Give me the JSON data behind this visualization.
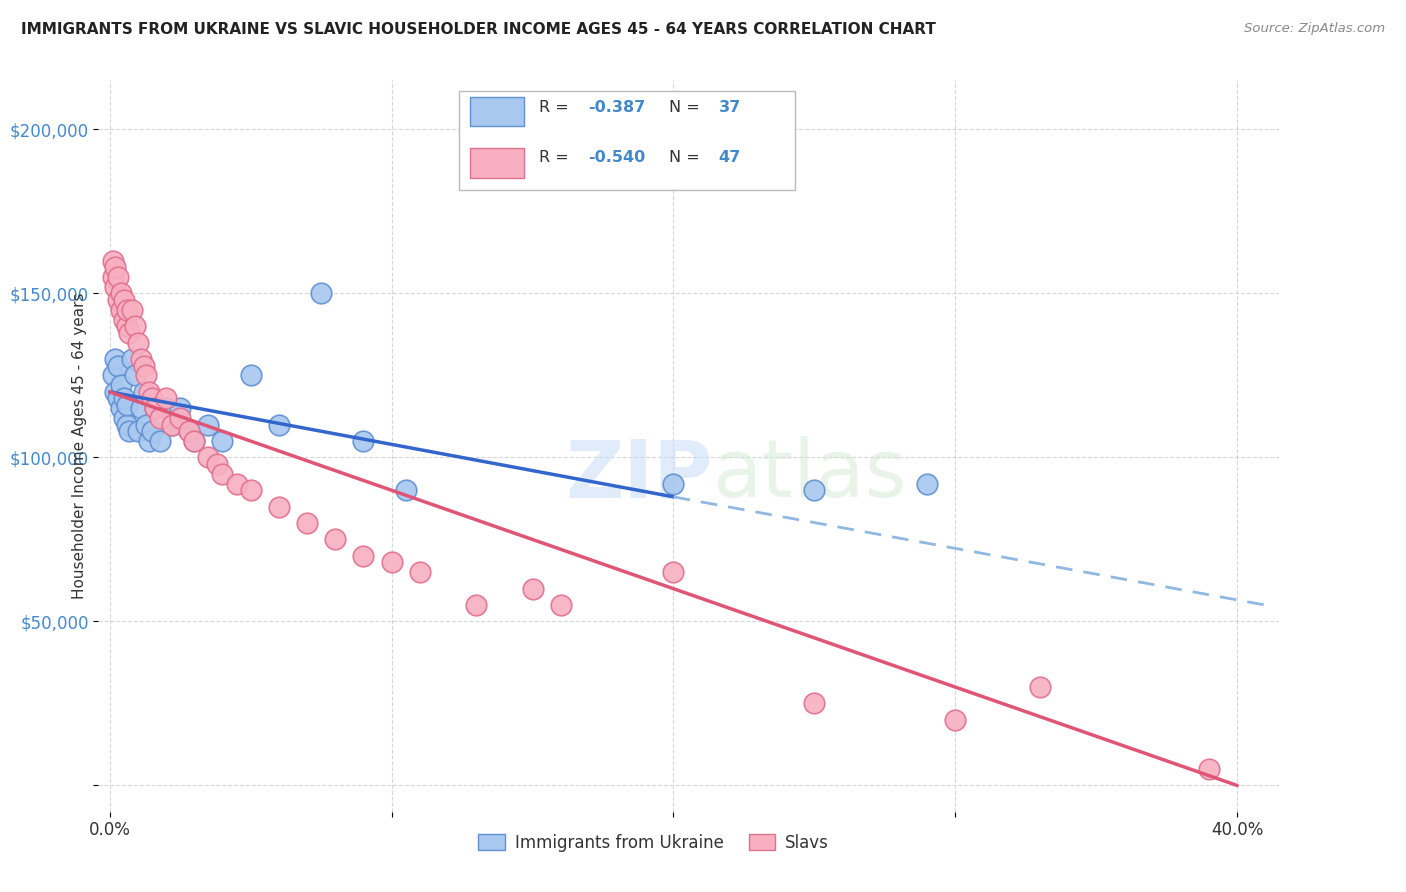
{
  "title": "IMMIGRANTS FROM UKRAINE VS SLAVIC HOUSEHOLDER INCOME AGES 45 - 64 YEARS CORRELATION CHART",
  "source": "Source: ZipAtlas.com",
  "ylabel": "Householder Income Ages 45 - 64 years",
  "xlim": [
    -0.004,
    0.415
  ],
  "ylim": [
    -8000,
    215000
  ],
  "ukraine_color": "#a8c8f0",
  "slavs_color": "#f8b0c0",
  "ukraine_edge": "#6090d0",
  "slavs_edge": "#e07090",
  "reg_ukraine_solid": "#3366cc",
  "reg_ukraine_dash": "#90b8e0",
  "reg_slavs": "#e05575",
  "watermark_zip": "ZIP",
  "watermark_atlas": "atlas",
  "legend_R_ukraine": "-0.387",
  "legend_N_ukraine": "37",
  "legend_R_slavs": "-0.540",
  "legend_N_slavs": "47",
  "text_color": "#333333",
  "label_color": "#4488cc",
  "ukraine_x": [
    0.001,
    0.002,
    0.002,
    0.003,
    0.003,
    0.004,
    0.004,
    0.005,
    0.005,
    0.006,
    0.006,
    0.007,
    0.008,
    0.009,
    0.01,
    0.011,
    0.012,
    0.013,
    0.014,
    0.015,
    0.016,
    0.018,
    0.02,
    0.022,
    0.025,
    0.028,
    0.03,
    0.035,
    0.04,
    0.05,
    0.06,
    0.075,
    0.09,
    0.105,
    0.2,
    0.25,
    0.29
  ],
  "ukraine_y": [
    125000,
    120000,
    130000,
    118000,
    128000,
    115000,
    122000,
    112000,
    118000,
    110000,
    116000,
    108000,
    130000,
    125000,
    108000,
    115000,
    120000,
    110000,
    105000,
    108000,
    115000,
    105000,
    115000,
    110000,
    115000,
    108000,
    105000,
    110000,
    105000,
    125000,
    110000,
    150000,
    105000,
    90000,
    92000,
    90000,
    92000
  ],
  "slavs_x": [
    0.001,
    0.001,
    0.002,
    0.002,
    0.003,
    0.003,
    0.004,
    0.004,
    0.005,
    0.005,
    0.006,
    0.006,
    0.007,
    0.008,
    0.009,
    0.01,
    0.011,
    0.012,
    0.013,
    0.014,
    0.015,
    0.016,
    0.018,
    0.02,
    0.022,
    0.025,
    0.028,
    0.03,
    0.035,
    0.038,
    0.04,
    0.045,
    0.05,
    0.06,
    0.07,
    0.08,
    0.09,
    0.1,
    0.11,
    0.13,
    0.15,
    0.16,
    0.2,
    0.25,
    0.3,
    0.33,
    0.39
  ],
  "slavs_y": [
    160000,
    155000,
    158000,
    152000,
    148000,
    155000,
    145000,
    150000,
    142000,
    148000,
    140000,
    145000,
    138000,
    145000,
    140000,
    135000,
    130000,
    128000,
    125000,
    120000,
    118000,
    115000,
    112000,
    118000,
    110000,
    112000,
    108000,
    105000,
    100000,
    98000,
    95000,
    92000,
    90000,
    85000,
    80000,
    75000,
    70000,
    68000,
    65000,
    55000,
    60000,
    55000,
    65000,
    25000,
    20000,
    30000,
    5000
  ]
}
